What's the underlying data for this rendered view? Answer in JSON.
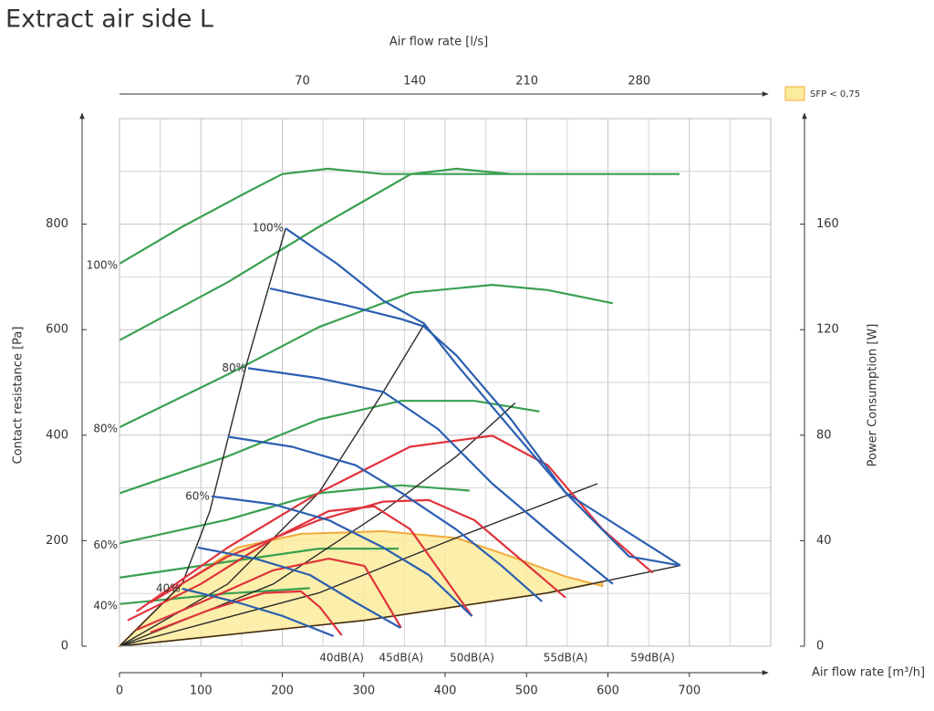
{
  "chart_data": {
    "type": "line",
    "title": "Extract air side L",
    "x_label": "Air flow rate [m³/h]",
    "x2_label": "Air flow rate [l/s]",
    "y_label": "Contact resistance [Pa]",
    "y2_label": "Power Consumption [W]",
    "xlim": [
      0,
      800
    ],
    "xticks": [
      0,
      100,
      200,
      300,
      400,
      500,
      600,
      700
    ],
    "x2lim": [
      -44,
      362
    ],
    "x2ticks": [
      70,
      140,
      210,
      280
    ],
    "ylim": [
      0,
      1000
    ],
    "yticks": [
      0,
      200,
      400,
      600,
      800
    ],
    "y2lim": [
      0,
      200
    ],
    "y2ticks": [
      0,
      40,
      80,
      120,
      160
    ],
    "grid": true,
    "minor_xgrid": [
      50,
      150,
      250,
      350,
      450,
      550,
      650,
      750
    ],
    "minor_ygrid": [
      100,
      300,
      500,
      700,
      900
    ],
    "legend": "top-right",
    "series": [
      {
        "name": "SFP < 0,75",
        "type": "area",
        "color": "#fbec9c",
        "stroke": "#f2a93b",
        "x": [
          0,
          77,
          145,
          223,
          324,
          414,
          481,
          548,
          593,
          593,
          526,
          301,
          0
        ],
        "values": [
          0,
          118,
          187,
          213,
          218,
          205,
          170,
          132,
          114,
          122,
          101,
          49,
          0
        ]
      },
      {
        "color": "#3aa050",
        "axis": "y2",
        "label": "100%",
        "x": [
          0,
          77,
          156,
          200,
          256,
          324,
          414,
          526,
          688
        ],
        "values": [
          145,
          159,
          172,
          179,
          181,
          179,
          179,
          179,
          179
        ]
      },
      {
        "color": "#3aa050",
        "axis": "y2",
        "x": [
          0,
          133,
          245,
          358,
          414,
          481
        ],
        "values": [
          116,
          138,
          159,
          179,
          181,
          179
        ]
      },
      {
        "color": "#3aa050",
        "axis": "y2",
        "label": "80%",
        "x": [
          0,
          133,
          245,
          358,
          458,
          526,
          606
        ],
        "values": [
          83,
          103,
          121,
          134,
          137,
          135,
          130
        ]
      },
      {
        "color": "#3aa050",
        "axis": "y2",
        "x": [
          0,
          133,
          245,
          346,
          436,
          516
        ],
        "values": [
          58,
          72,
          86,
          93,
          93,
          89
        ]
      },
      {
        "color": "#3aa050",
        "axis": "y2",
        "label": "60%",
        "x": [
          0,
          133,
          245,
          346,
          430
        ],
        "values": [
          39,
          48,
          58,
          61,
          59
        ]
      },
      {
        "color": "#3aa050",
        "axis": "y2",
        "x": [
          0,
          133,
          245,
          343
        ],
        "values": [
          26,
          32,
          37,
          37
        ]
      },
      {
        "color": "#3aa050",
        "axis": "y2",
        "label": "40%",
        "x": [
          0,
          133,
          234
        ],
        "values": [
          16,
          20,
          22
        ]
      },
      {
        "color": "#2a2a2a",
        "x": [
          0,
          77,
          111,
          156,
          204
        ],
        "values": [
          0,
          118,
          256,
          534,
          792
        ]
      },
      {
        "color": "#2a2a2a",
        "x": [
          0,
          133,
          245,
          324,
          375
        ],
        "values": [
          0,
          118,
          291,
          482,
          612
        ]
      },
      {
        "color": "#2a2a2a",
        "x": [
          0,
          189,
          324,
          414,
          486
        ],
        "values": [
          0,
          118,
          256,
          360,
          461
        ]
      },
      {
        "color": "#2a2a2a",
        "x": [
          0,
          245,
          413,
          587
        ],
        "values": [
          0,
          101,
          205,
          308
        ]
      },
      {
        "color": "#2a2a2a",
        "x": [
          0,
          301,
          526,
          689
        ],
        "values": [
          0,
          49,
          101,
          153
        ]
      },
      {
        "color": "#e0333c",
        "noise_label": "40dB(A)",
        "x": [
          38,
          111,
          178,
          223,
          246,
          273
        ],
        "values": [
          26,
          69,
          101,
          104,
          74,
          21
        ]
      },
      {
        "color": "#e0333c",
        "noise_label": "45dB(A)",
        "x": [
          21,
          100,
          189,
          257,
          301,
          346
        ],
        "values": [
          31,
          83,
          144,
          166,
          152,
          35
        ]
      },
      {
        "color": "#e0333c",
        "noise_label": "50dB(A)",
        "x": [
          10,
          100,
          189,
          257,
          313,
          357,
          433
        ],
        "values": [
          49,
          118,
          204,
          256,
          265,
          222,
          57
        ]
      },
      {
        "color": "#e0333c",
        "noise_label": "55dB(A)",
        "x": [
          38,
          133,
          245,
          324,
          380,
          436,
          548
        ],
        "values": [
          83,
          170,
          239,
          274,
          277,
          239,
          92
        ]
      },
      {
        "color": "#e0333c",
        "noise_label": "59dB(A)",
        "x": [
          21,
          133,
          245,
          357,
          458,
          526,
          593,
          655
        ],
        "values": [
          66,
          187,
          291,
          378,
          399,
          343,
          222,
          139
        ]
      },
      {
        "color": "#2b5fb0",
        "label": "100%",
        "x": [
          204,
          268,
          324,
          374,
          414,
          481,
          548,
          626,
          689
        ],
        "values": [
          792,
          724,
          655,
          612,
          534,
          412,
          291,
          170,
          153
        ]
      },
      {
        "color": "#2b5fb0",
        "x": [
          185,
          279,
          346,
          374,
          414,
          481,
          548,
          689
        ],
        "values": [
          678,
          646,
          620,
          606,
          551,
          430,
          291,
          153
        ]
      },
      {
        "color": "#2b5fb0",
        "label": "80%",
        "x": [
          158,
          245,
          324,
          391,
          458,
          537,
          606
        ],
        "values": [
          527,
          508,
          482,
          412,
          308,
          205,
          118
        ]
      },
      {
        "color": "#2b5fb0",
        "x": [
          133,
          212,
          290,
          346,
          413,
          469,
          519
        ],
        "values": [
          397,
          378,
          343,
          291,
          222,
          153,
          85
        ]
      },
      {
        "color": "#2b5fb0",
        "label": "60%",
        "x": [
          113,
          189,
          257,
          324,
          380,
          433
        ],
        "values": [
          284,
          269,
          239,
          187,
          135,
          57
        ]
      },
      {
        "color": "#2b5fb0",
        "x": [
          96,
          167,
          234,
          290,
          345
        ],
        "values": [
          187,
          166,
          135,
          83,
          35
        ]
      },
      {
        "color": "#2b5fb0",
        "label": "40%",
        "x": [
          77,
          145,
          201,
          263
        ],
        "values": [
          109,
          83,
          57,
          19
        ]
      }
    ]
  }
}
